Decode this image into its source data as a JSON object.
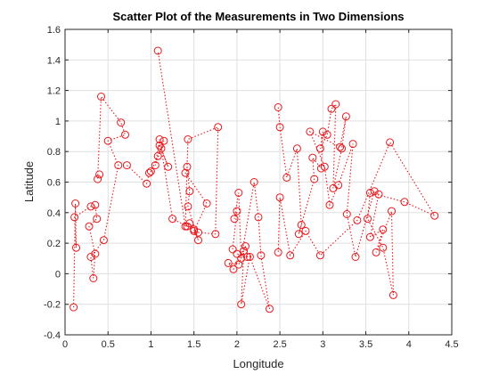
{
  "chart_data": {
    "type": "scatter",
    "title": "Scatter Plot of the Measurements in Two Dimensions",
    "xlabel": "Longitude",
    "ylabel": "Latitude",
    "xlim": [
      0,
      4.5
    ],
    "ylim": [
      -0.4,
      1.6
    ],
    "xticks": [
      0,
      0.5,
      1,
      1.5,
      2,
      2.5,
      3,
      3.5,
      4,
      4.5
    ],
    "xtick_labels": [
      "0",
      "0.5",
      "1",
      "1.5",
      "2",
      "2.5",
      "3",
      "3.5",
      "4",
      "4.5"
    ],
    "yticks": [
      -0.4,
      -0.2,
      0,
      0.2,
      0.4,
      0.6,
      0.8,
      1,
      1.2,
      1.4,
      1.6
    ],
    "ytick_labels": [
      "-0.4",
      "-0.2",
      "0",
      "0.2",
      "0.4",
      "0.6",
      "0.8",
      "1",
      "1.2",
      "1.4",
      "1.6"
    ],
    "grid": true,
    "marker": "circle",
    "line_style": "dotted",
    "color": "#e8191d",
    "series": [
      {
        "x": [
          0.1,
          0.12,
          0.13,
          0.11,
          0.3,
          0.35,
          0.37,
          0.28,
          0.35,
          0.33,
          0.3,
          0.45,
          0.62,
          0.5,
          0.7,
          0.65,
          0.42,
          0.38,
          0.4
        ],
        "y": [
          -0.22,
          0.46,
          0.17,
          0.37,
          0.44,
          0.45,
          0.36,
          0.31,
          0.13,
          -0.03,
          0.11,
          0.22,
          0.71,
          0.87,
          0.91,
          0.99,
          1.16,
          0.62,
          0.65
        ]
      },
      {
        "x": [
          0.72,
          0.95,
          0.98,
          1.0,
          1.08,
          1.15,
          1.05,
          1.1,
          1.1,
          1.2,
          1.12,
          1.25,
          1.42,
          1.45,
          1.5,
          1.55,
          1.43,
          1.45,
          1.42,
          1.4,
          1.65,
          1.5,
          1.55,
          1.75,
          1.78,
          1.43,
          1.4,
          1.08
        ],
        "y": [
          0.71,
          0.59,
          0.66,
          0.67,
          0.77,
          0.87,
          0.71,
          0.88,
          0.84,
          0.7,
          0.82,
          0.36,
          0.31,
          0.33,
          0.29,
          0.22,
          0.44,
          0.54,
          0.7,
          0.66,
          0.46,
          0.28,
          0.27,
          0.26,
          0.96,
          0.88,
          0.31,
          1.46
        ]
      },
      {
        "x": [
          1.95,
          2.0,
          1.97,
          2.02,
          2.05,
          2.2,
          2.25,
          2.28,
          2.38,
          2.15,
          2.05,
          2.08,
          2.02,
          1.9,
          1.96,
          2.1,
          2.12,
          2.0
        ],
        "y": [
          0.16,
          0.41,
          0.36,
          0.53,
          0.1,
          0.6,
          0.37,
          0.12,
          -0.23,
          0.11,
          -0.2,
          0.15,
          0.06,
          0.07,
          0.03,
          0.18,
          0.11,
          0.13
        ]
      },
      {
        "x": [
          2.48,
          2.5,
          2.58,
          2.7,
          2.75,
          2.72,
          2.9,
          2.88,
          2.98,
          3.0,
          2.97,
          3.05,
          3.1,
          3.15,
          3.12,
          3.22,
          3.27,
          3.2,
          2.85,
          3.02,
          3.08,
          3.18,
          3.35,
          3.28,
          3.38,
          3.6,
          3.65,
          3.55,
          3.7,
          3.62,
          3.8,
          3.82,
          3.7,
          3.52,
          3.55,
          3.95,
          4.3,
          3.78,
          3.4,
          2.97,
          2.8,
          2.62,
          2.5,
          2.48
        ],
        "y": [
          1.09,
          0.96,
          0.63,
          0.82,
          0.32,
          0.26,
          0.62,
          0.76,
          0.69,
          0.93,
          0.82,
          0.91,
          1.08,
          1.11,
          0.56,
          0.82,
          1.03,
          0.83,
          0.93,
          0.7,
          0.45,
          0.58,
          0.85,
          0.39,
          0.11,
          0.54,
          0.52,
          0.24,
          0.29,
          0.14,
          0.41,
          -0.14,
          0.17,
          0.36,
          0.53,
          0.47,
          0.38,
          0.86,
          0.35,
          0.12,
          0.28,
          0.12,
          0.5,
          0.14
        ]
      }
    ]
  }
}
